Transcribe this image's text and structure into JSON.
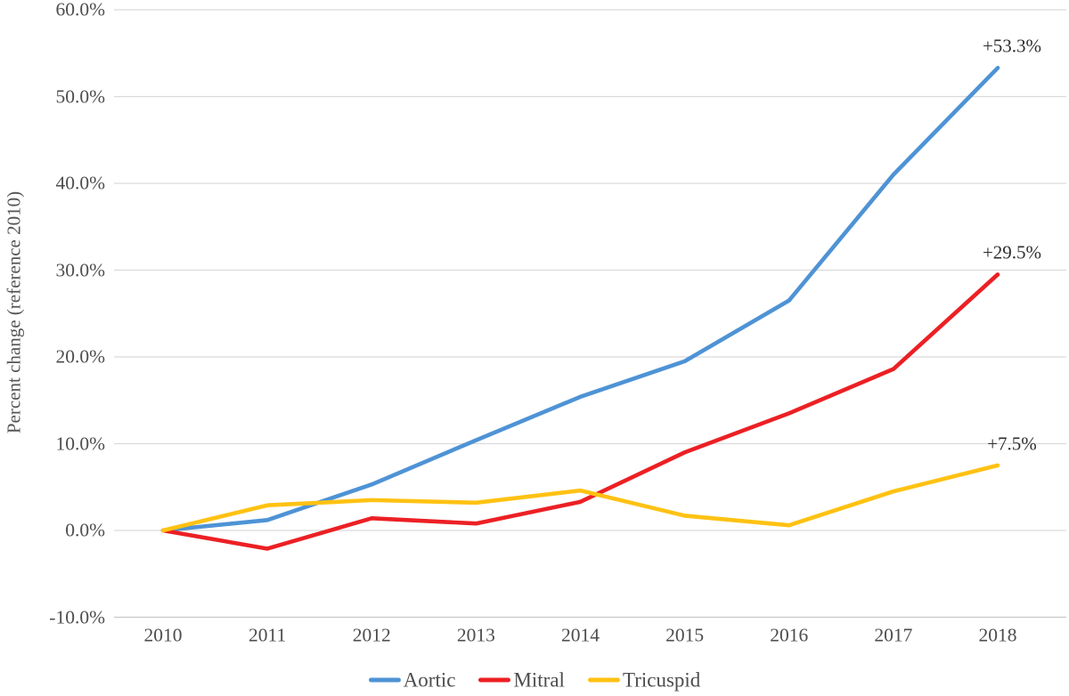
{
  "chart_data": {
    "type": "line",
    "title": "",
    "xlabel": "",
    "ylabel": "Percent change (reference 2010)",
    "categories": [
      "2010",
      "2011",
      "2012",
      "2013",
      "2014",
      "2015",
      "2016",
      "2017",
      "2018"
    ],
    "ylim": [
      -10,
      60
    ],
    "ytick_step": 10,
    "ytick_labels": [
      "60.0%",
      "50.0%",
      "40.0%",
      "30.0%",
      "20.0%",
      "10.0%",
      "0.0%",
      "-10.0%"
    ],
    "grid": true,
    "legend_position": "bottom-center",
    "series": [
      {
        "name": "Aortic",
        "color": "#4E93D5",
        "values": [
          0.0,
          1.2,
          5.3,
          10.4,
          15.4,
          19.5,
          26.5,
          41.0,
          53.3
        ],
        "end_label": "+53.3%"
      },
      {
        "name": "Mitral",
        "color": "#EC2024",
        "values": [
          0.0,
          -2.1,
          1.4,
          0.8,
          3.3,
          9.0,
          13.5,
          18.6,
          29.5
        ],
        "end_label": "+29.5%"
      },
      {
        "name": "Tricuspid",
        "color": "#FFC213",
        "values": [
          0.0,
          2.9,
          3.5,
          3.2,
          4.6,
          1.7,
          0.6,
          4.5,
          7.5
        ],
        "end_label": "+7.5%"
      }
    ],
    "gridline_color": "#DADADA",
    "axisline_color": "#C8C8C8"
  }
}
